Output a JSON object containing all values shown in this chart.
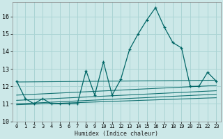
{
  "xlabel": "Humidex (Indice chaleur)",
  "bg_color": "#cce8e8",
  "line_color": "#006666",
  "grid_color": "#aad4d4",
  "xlim": [
    -0.5,
    23.5
  ],
  "ylim": [
    10.0,
    16.8
  ],
  "yticks": [
    10,
    11,
    12,
    13,
    14,
    15,
    16
  ],
  "xticks": [
    0,
    1,
    2,
    3,
    4,
    5,
    6,
    7,
    8,
    9,
    10,
    11,
    12,
    13,
    14,
    15,
    16,
    17,
    18,
    19,
    20,
    21,
    22,
    23
  ],
  "main_x": [
    0,
    1,
    2,
    3,
    4,
    5,
    6,
    7,
    8,
    9,
    10,
    11,
    12,
    13,
    14,
    15,
    16,
    17,
    18,
    19,
    20,
    21,
    22,
    23
  ],
  "main_y": [
    12.3,
    11.3,
    11.0,
    11.3,
    11.0,
    11.0,
    11.0,
    11.0,
    12.9,
    11.5,
    13.4,
    11.5,
    12.4,
    14.1,
    15.0,
    15.8,
    16.5,
    15.4,
    14.5,
    14.2,
    12.0,
    12.0,
    12.8,
    12.3
  ],
  "flat_lines": [
    {
      "x0": 0,
      "x1": 23,
      "y0": 12.25,
      "y1": 12.35
    },
    {
      "x0": 0,
      "x1": 23,
      "y0": 11.5,
      "y1": 12.05
    },
    {
      "x0": 0,
      "x1": 23,
      "y0": 11.2,
      "y1": 11.75
    },
    {
      "x0": 0,
      "x1": 23,
      "y0": 11.0,
      "y1": 11.55
    },
    {
      "x0": 0,
      "x1": 23,
      "y0": 10.95,
      "y1": 11.35
    }
  ]
}
